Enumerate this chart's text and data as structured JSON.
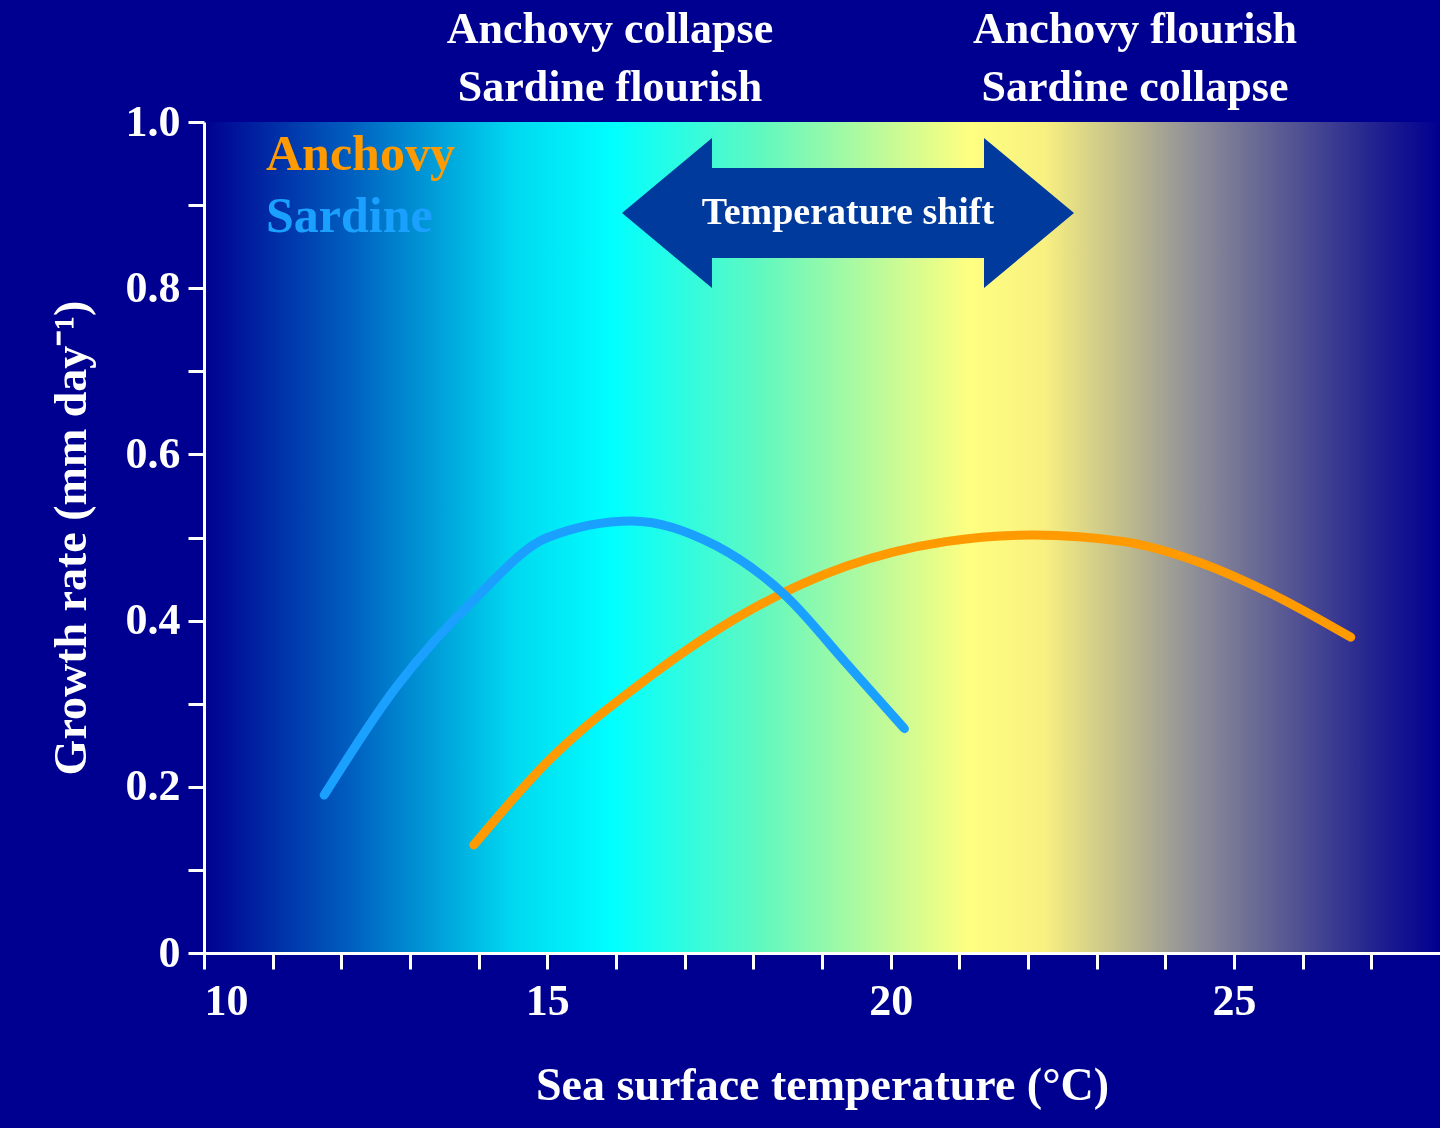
{
  "chart_data": {
    "type": "line",
    "xlabel": "Sea surface temperature (°C)",
    "ylabel": "Growth rate (mm day⁻¹)",
    "xlim": [
      10,
      28
    ],
    "ylim": [
      0,
      1
    ],
    "xticks": [
      10,
      {
        "value": 11,
        "label": null
      },
      {
        "value": 12,
        "label": null
      },
      {
        "value": 13,
        "label": null
      },
      {
        "value": 14,
        "label": null
      },
      15,
      {
        "value": 16,
        "label": null
      },
      {
        "value": 17,
        "label": null
      },
      {
        "value": 18,
        "label": null
      },
      {
        "value": 19,
        "label": null
      },
      20,
      {
        "value": 21,
        "label": null
      },
      {
        "value": 22,
        "label": null
      },
      {
        "value": 23,
        "label": null
      },
      {
        "value": 24,
        "label": null
      },
      25,
      {
        "value": 26,
        "label": null
      },
      {
        "value": 27,
        "label": null
      }
    ],
    "yticks": [
      0,
      {
        "value": 0.1,
        "label": null
      },
      0.2,
      {
        "value": 0.3,
        "label": null
      },
      0.4,
      {
        "value": 0.5,
        "label": null
      },
      0.6,
      {
        "value": 0.7,
        "label": null
      },
      0.8,
      {
        "value": 0.9,
        "label": null
      },
      {
        "value": 1,
        "label": "1.0"
      }
    ],
    "grid": false,
    "legend": "top left",
    "series": [
      {
        "name": "Anchovy",
        "color": "#ff9a00",
        "x": [
          13.93,
          15.0,
          16.45,
          17.9,
          19.34,
          20.8,
          22.08,
          23.4,
          24.5,
          25.6,
          26.7
        ],
        "values": [
          0.13,
          0.23,
          0.33,
          0.41,
          0.465,
          0.495,
          0.503,
          0.495,
          0.47,
          0.43,
          0.38
        ]
      },
      {
        "name": "Sardine",
        "color": "#1aa0ff",
        "x": [
          11.75,
          12.8,
          13.99,
          15.0,
          16.23,
          17.46,
          18.47,
          19.34,
          20.2
        ],
        "values": [
          0.19,
          0.32,
          0.43,
          0.5,
          0.52,
          0.49,
          0.43,
          0.35,
          0.27
        ]
      }
    ],
    "annotations": [
      "Anchovy collapse",
      "Sardine flourish",
      "Anchovy flourish",
      "Sardine collapse",
      "Temperature shift"
    ]
  }
}
